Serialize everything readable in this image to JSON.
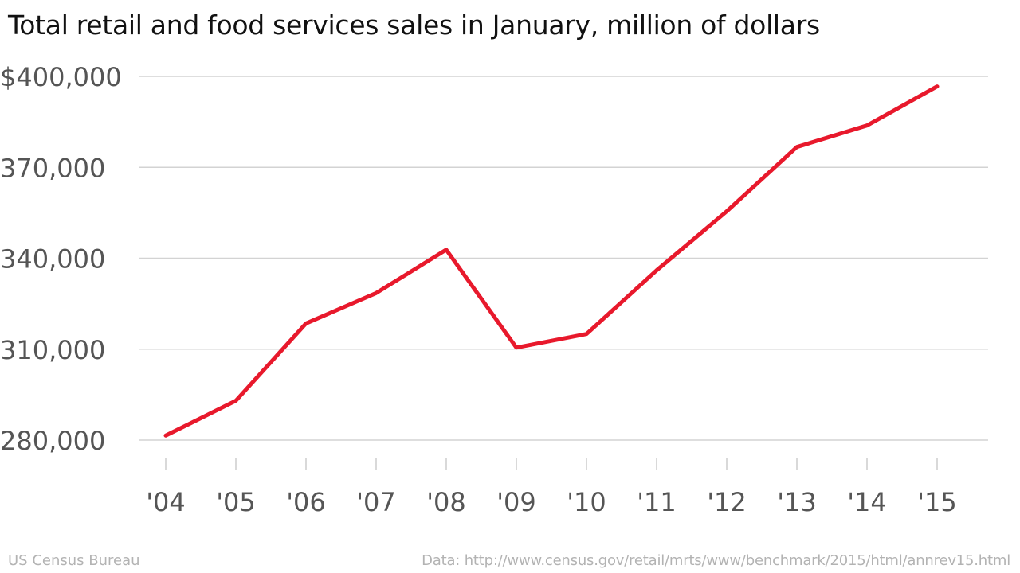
{
  "chart_data": {
    "type": "line",
    "title": "Total retail and food services sales in January, million of dollars",
    "x": [
      "'04",
      "'05",
      "'06",
      "'07",
      "'08",
      "'09",
      "'10",
      "'11",
      "'12",
      "'13",
      "'14",
      "'15"
    ],
    "series": [
      {
        "values": [
          281500,
          293000,
          318500,
          328500,
          342800,
          310500,
          315000,
          336000,
          355500,
          376700,
          383800,
          396700
        ]
      }
    ],
    "y_ticks": [
      280000,
      310000,
      340000,
      370000,
      400000
    ],
    "y_tick_labels": [
      "280,000",
      "310,000",
      "340,000",
      "370,000",
      "$400,000"
    ],
    "ylim": [
      280000,
      400000
    ],
    "grid": true,
    "line_color": "#e8192c"
  },
  "footer": {
    "source": "US Census Bureau",
    "data_note": "Data: http://www.census.gov/retail/mrts/www/benchmark/2015/html/annrev15.html"
  }
}
